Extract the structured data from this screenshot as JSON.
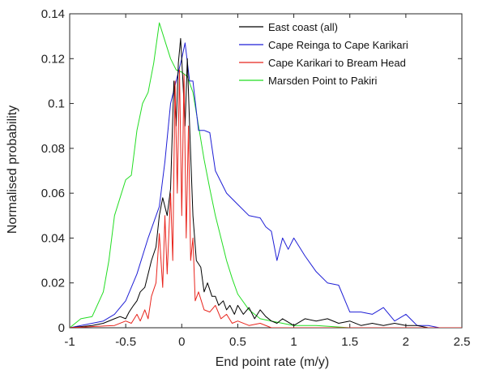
{
  "chart_data": {
    "type": "line",
    "title": "",
    "xlabel": "End point rate (m/y)",
    "ylabel": "Normalised probability",
    "xlim": [
      -1,
      2.5
    ],
    "ylim": [
      0,
      0.14
    ],
    "xticks": [
      -1,
      -0.5,
      0,
      0.5,
      1,
      1.5,
      2,
      2.5
    ],
    "xtick_labels": [
      "-1",
      "-0.5",
      "0",
      "0.5",
      "1",
      "1.5",
      "2",
      "2.5"
    ],
    "yticks": [
      0,
      0.02,
      0.04,
      0.06,
      0.08,
      0.1,
      0.12,
      0.14
    ],
    "ytick_labels": [
      "0",
      "0.02",
      "0.04",
      "0.06",
      "0.08",
      "0.1",
      "0.12",
      "0.14"
    ],
    "grid": false,
    "legend_position": "top-right",
    "series": [
      {
        "name": "East coast (all)",
        "color": "#000000",
        "x": [
          -1.0,
          -0.8,
          -0.7,
          -0.6,
          -0.55,
          -0.5,
          -0.47,
          -0.43,
          -0.4,
          -0.37,
          -0.33,
          -0.3,
          -0.27,
          -0.23,
          -0.2,
          -0.17,
          -0.13,
          -0.1,
          -0.07,
          -0.05,
          -0.03,
          -0.01,
          0.01,
          0.03,
          0.05,
          0.07,
          0.1,
          0.13,
          0.17,
          0.2,
          0.23,
          0.27,
          0.3,
          0.33,
          0.37,
          0.4,
          0.43,
          0.47,
          0.5,
          0.55,
          0.6,
          0.65,
          0.7,
          0.75,
          0.8,
          0.85,
          0.9,
          1.0,
          1.1,
          1.2,
          1.3,
          1.4,
          1.5,
          1.6,
          1.7,
          1.8,
          1.9,
          2.0,
          2.1,
          2.2,
          2.3
        ],
        "y": [
          0.0,
          0.001,
          0.002,
          0.004,
          0.005,
          0.004,
          0.007,
          0.01,
          0.012,
          0.016,
          0.018,
          0.024,
          0.03,
          0.036,
          0.05,
          0.058,
          0.05,
          0.062,
          0.11,
          0.09,
          0.118,
          0.129,
          0.11,
          0.09,
          0.12,
          0.09,
          0.05,
          0.03,
          0.027,
          0.016,
          0.02,
          0.014,
          0.014,
          0.01,
          0.012,
          0.008,
          0.01,
          0.006,
          0.01,
          0.006,
          0.009,
          0.004,
          0.008,
          0.005,
          0.003,
          0.002,
          0.004,
          0.001,
          0.004,
          0.003,
          0.004,
          0.002,
          0.003,
          0.001,
          0.002,
          0.001,
          0.002,
          0.001,
          0.001,
          0.0,
          0.0
        ]
      },
      {
        "name": "Cape Reinga to Cape Karikari",
        "color": "#1f1fd6",
        "x": [
          -1.0,
          -0.8,
          -0.7,
          -0.6,
          -0.5,
          -0.4,
          -0.3,
          -0.2,
          -0.15,
          -0.1,
          -0.05,
          0.0,
          0.03,
          0.07,
          0.1,
          0.15,
          0.2,
          0.25,
          0.3,
          0.4,
          0.5,
          0.6,
          0.7,
          0.75,
          0.8,
          0.85,
          0.9,
          0.95,
          1.0,
          1.1,
          1.2,
          1.3,
          1.4,
          1.5,
          1.6,
          1.7,
          1.8,
          1.9,
          2.0,
          2.1,
          2.2,
          2.3
        ],
        "y": [
          0.0,
          0.002,
          0.003,
          0.006,
          0.012,
          0.024,
          0.04,
          0.054,
          0.074,
          0.1,
          0.11,
          0.12,
          0.127,
          0.11,
          0.11,
          0.088,
          0.088,
          0.087,
          0.07,
          0.06,
          0.055,
          0.05,
          0.049,
          0.045,
          0.043,
          0.03,
          0.04,
          0.035,
          0.04,
          0.032,
          0.025,
          0.02,
          0.019,
          0.007,
          0.007,
          0.006,
          0.009,
          0.003,
          0.006,
          0.001,
          0.001,
          0.0
        ]
      },
      {
        "name": "Cape Karikari to Bream Head",
        "color": "#e8241c",
        "x": [
          -1.0,
          -0.6,
          -0.5,
          -0.45,
          -0.4,
          -0.37,
          -0.33,
          -0.3,
          -0.27,
          -0.23,
          -0.2,
          -0.17,
          -0.15,
          -0.13,
          -0.1,
          -0.08,
          -0.06,
          -0.04,
          -0.02,
          0.0,
          0.02,
          0.04,
          0.06,
          0.08,
          0.1,
          0.12,
          0.15,
          0.2,
          0.25,
          0.3,
          0.35,
          0.4,
          0.45,
          0.5,
          0.6,
          0.7,
          0.8,
          1.0,
          1.5,
          2.0,
          2.5
        ],
        "y": [
          0.0,
          0.001,
          0.003,
          0.002,
          0.006,
          0.003,
          0.008,
          0.004,
          0.014,
          0.02,
          0.042,
          0.018,
          0.05,
          0.024,
          0.06,
          0.03,
          0.11,
          0.06,
          0.115,
          0.05,
          0.113,
          0.04,
          0.09,
          0.03,
          0.04,
          0.012,
          0.016,
          0.008,
          0.007,
          0.01,
          0.004,
          0.006,
          0.002,
          0.003,
          0.001,
          0.002,
          0.0,
          0.0,
          0.0,
          0.0,
          0.0
        ]
      },
      {
        "name": "Marsden Point to Pakiri",
        "color": "#22dd22",
        "x": [
          -1.0,
          -0.9,
          -0.8,
          -0.7,
          -0.65,
          -0.6,
          -0.55,
          -0.5,
          -0.45,
          -0.4,
          -0.35,
          -0.3,
          -0.25,
          -0.2,
          -0.15,
          -0.1,
          -0.05,
          0.0,
          0.05,
          0.1,
          0.15,
          0.2,
          0.25,
          0.3,
          0.35,
          0.4,
          0.45,
          0.5,
          0.6,
          0.7,
          0.8,
          0.9,
          1.0,
          1.2,
          1.5,
          2.0,
          2.5
        ],
        "y": [
          0.0,
          0.004,
          0.005,
          0.016,
          0.03,
          0.05,
          0.058,
          0.066,
          0.068,
          0.088,
          0.1,
          0.105,
          0.118,
          0.136,
          0.128,
          0.12,
          0.115,
          0.114,
          0.112,
          0.105,
          0.09,
          0.075,
          0.062,
          0.05,
          0.04,
          0.03,
          0.022,
          0.015,
          0.008,
          0.004,
          0.003,
          0.002,
          0.001,
          0.001,
          0.0,
          0.0,
          0.0
        ]
      }
    ]
  }
}
